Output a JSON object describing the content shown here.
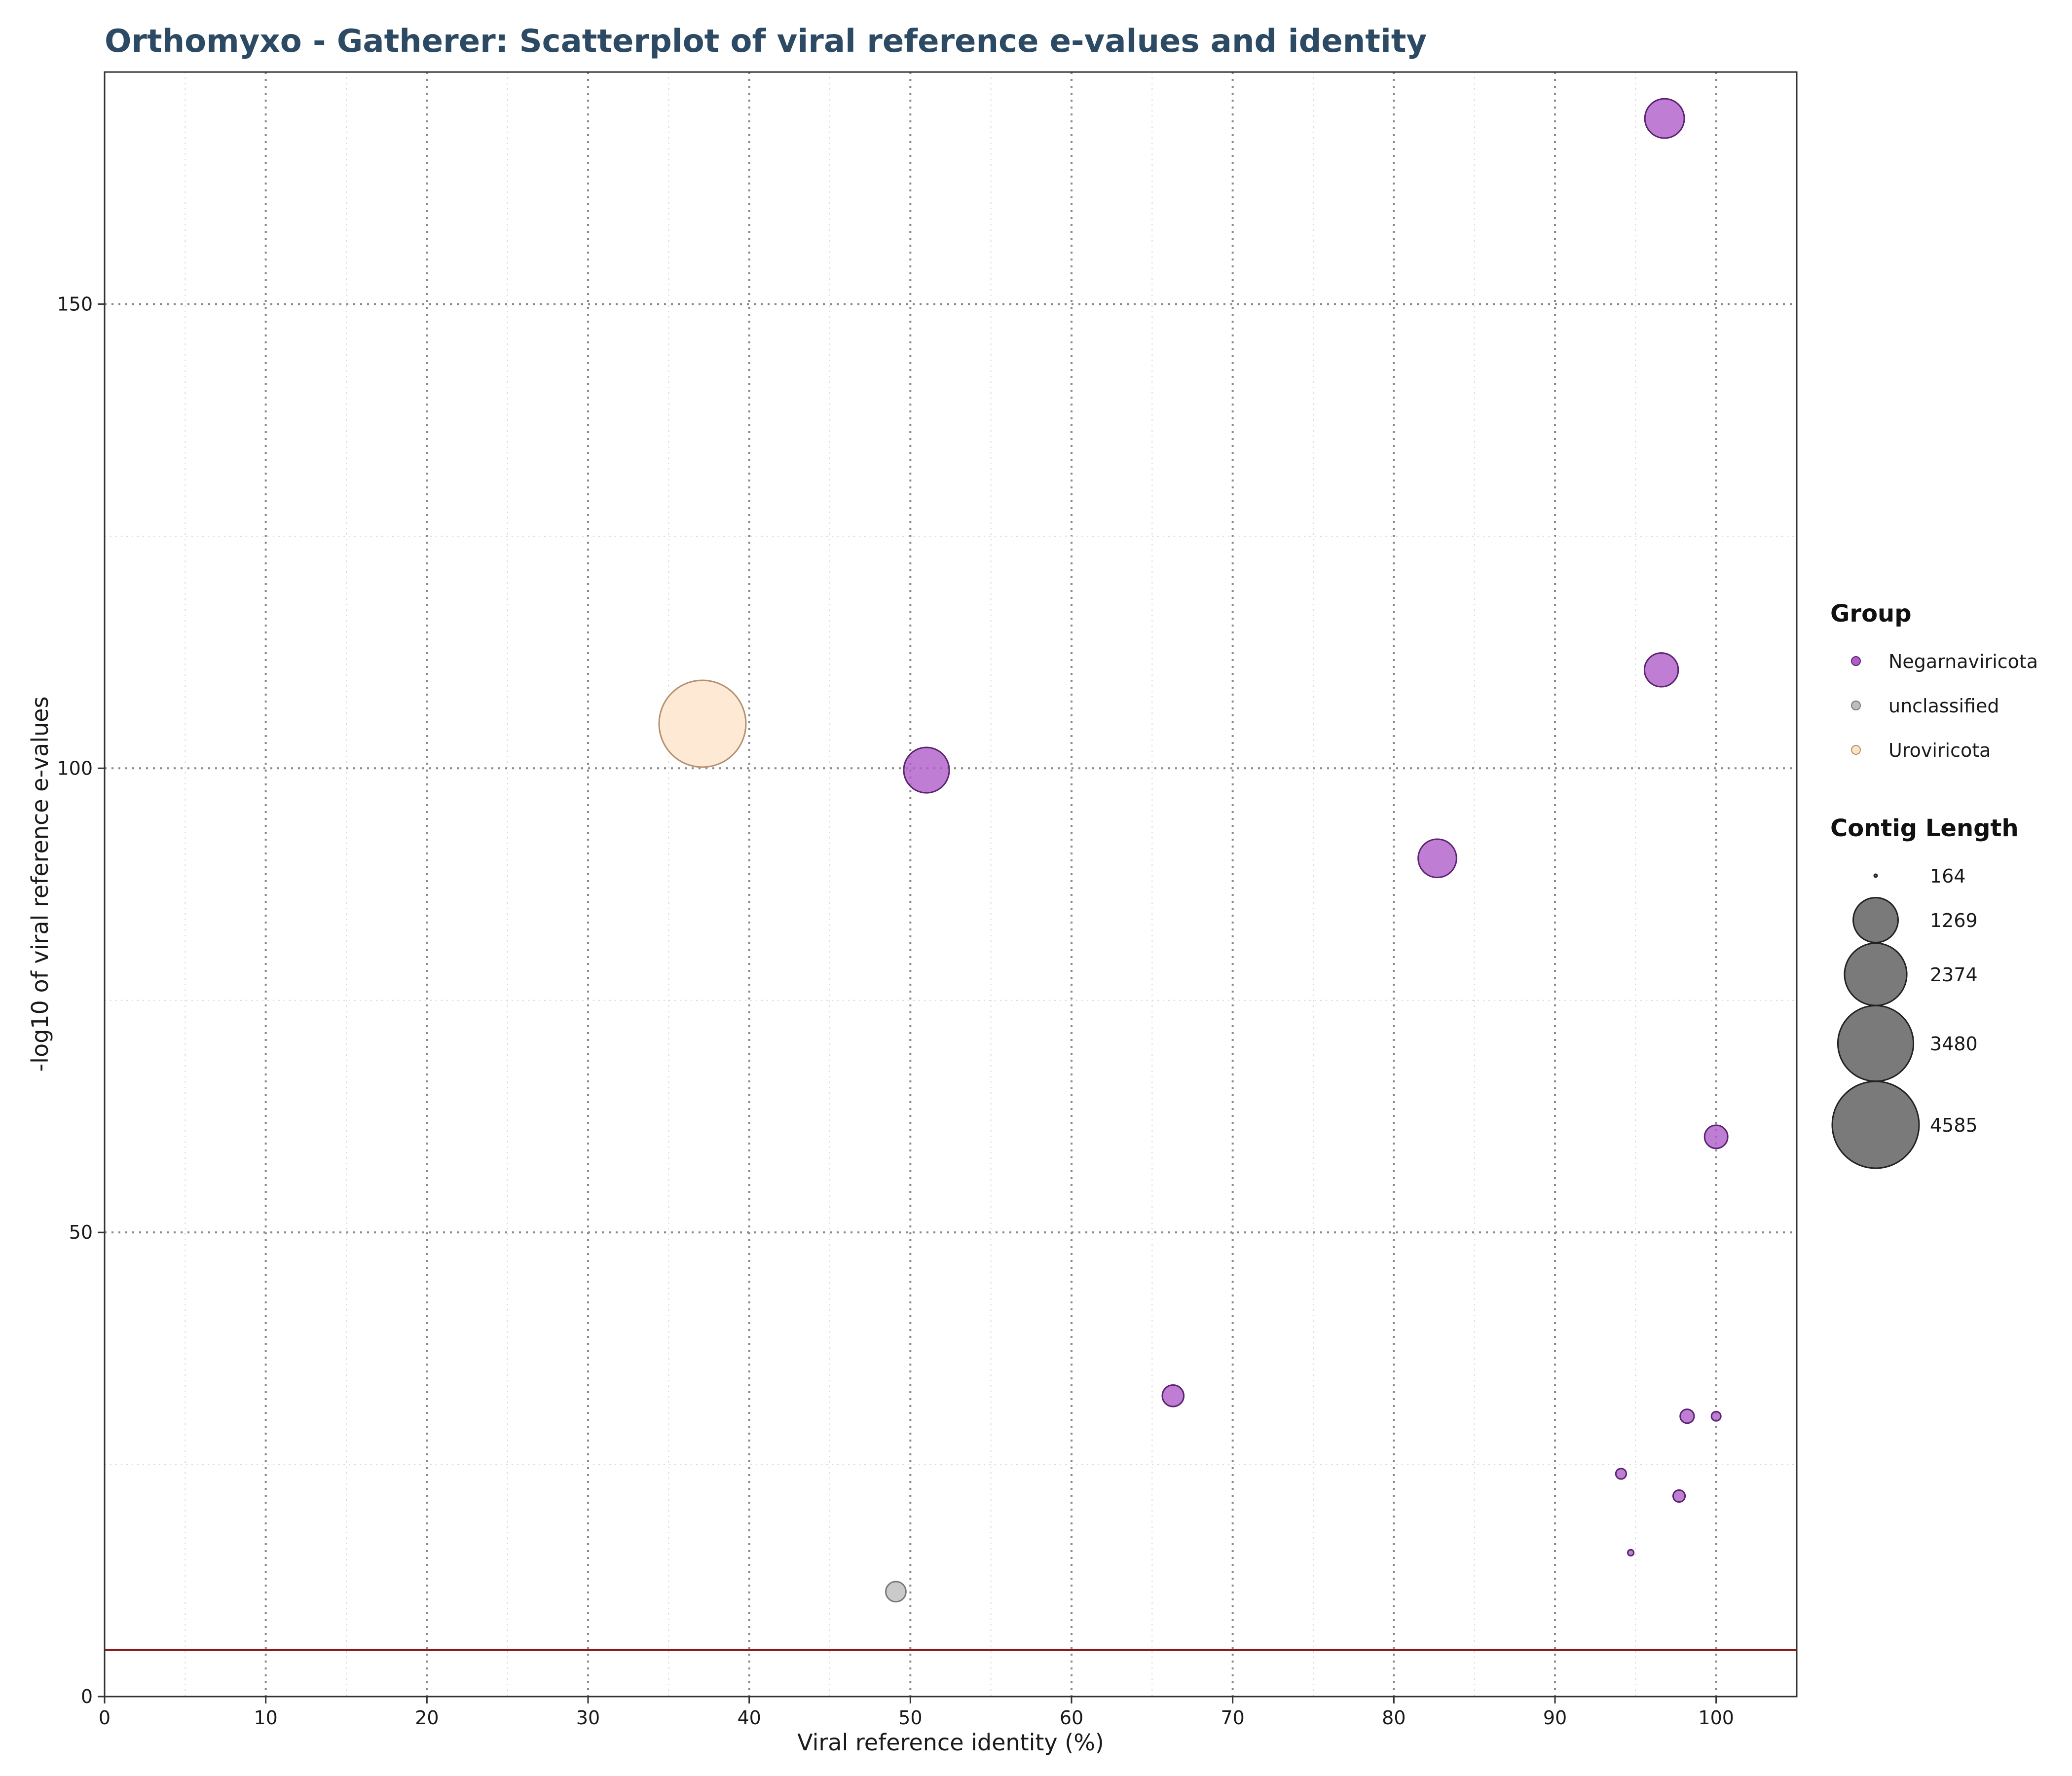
{
  "chart_data": {
    "type": "scatter",
    "title": "Orthomyxo - Gatherer: Scatterplot of viral reference e-values and identity",
    "xlabel": "Viral reference identity (%)",
    "ylabel": "-log10 of viral reference e-values",
    "xlim": [
      0,
      105
    ],
    "ylim": [
      0,
      175
    ],
    "x_ticks": [
      0,
      10,
      20,
      30,
      40,
      50,
      60,
      70,
      80,
      90,
      100
    ],
    "y_ticks": [
      0,
      50,
      100,
      150
    ],
    "x_ticks_labels": [
      "0",
      "10",
      "20",
      "30",
      "40",
      "50",
      "60",
      "70",
      "80",
      "90",
      "100"
    ],
    "y_ticks_labels": [
      "0",
      "50",
      "100",
      "150"
    ],
    "grid": true,
    "threshold_line": {
      "y": 5,
      "color": "#8b1a1a"
    },
    "groups": [
      {
        "name": "Negarnaviricota",
        "color": "#b05cc9",
        "stroke": "#5a2470"
      },
      {
        "name": "unclassified",
        "color": "#bdbdbd",
        "stroke": "#7a7a7a"
      },
      {
        "name": "Uroviricota",
        "color": "#fde2c6",
        "stroke": "#b59070"
      }
    ],
    "size_legend_title": "Contig Length",
    "size_legend": [
      164,
      1269,
      2374,
      3480,
      4585
    ],
    "size_legend_labels": [
      "164",
      "1269",
      "2374",
      "3480",
      "4585"
    ],
    "size_range": [
      164,
      4585
    ],
    "group_legend_title": "Group",
    "legend_position": "right",
    "points": [
      {
        "group": "Negarnaviricota",
        "x": 96.8,
        "y": 170,
        "size": 1000
      },
      {
        "group": "Negarnaviricota",
        "x": 96.6,
        "y": 110.6,
        "size": 760
      },
      {
        "group": "Negarnaviricota",
        "x": 51,
        "y": 99.8,
        "size": 1300
      },
      {
        "group": "Negarnaviricota",
        "x": 82.7,
        "y": 90.3,
        "size": 950
      },
      {
        "group": "Negarnaviricota",
        "x": 100,
        "y": 60.3,
        "size": 420
      },
      {
        "group": "Negarnaviricota",
        "x": 66.3,
        "y": 32.4,
        "size": 380
      },
      {
        "group": "Negarnaviricota",
        "x": 98.2,
        "y": 30.2,
        "size": 240
      },
      {
        "group": "Negarnaviricota",
        "x": 100,
        "y": 30.2,
        "size": 190
      },
      {
        "group": "Negarnaviricota",
        "x": 94.1,
        "y": 24,
        "size": 200
      },
      {
        "group": "Negarnaviricota",
        "x": 97.7,
        "y": 21.6,
        "size": 215
      },
      {
        "group": "Negarnaviricota",
        "x": 94.7,
        "y": 15.5,
        "size": 170
      },
      {
        "group": "unclassified",
        "x": 49.1,
        "y": 11.3,
        "size": 350
      },
      {
        "group": "Uroviricota",
        "x": 37.1,
        "y": 104.8,
        "size": 4585
      }
    ]
  }
}
